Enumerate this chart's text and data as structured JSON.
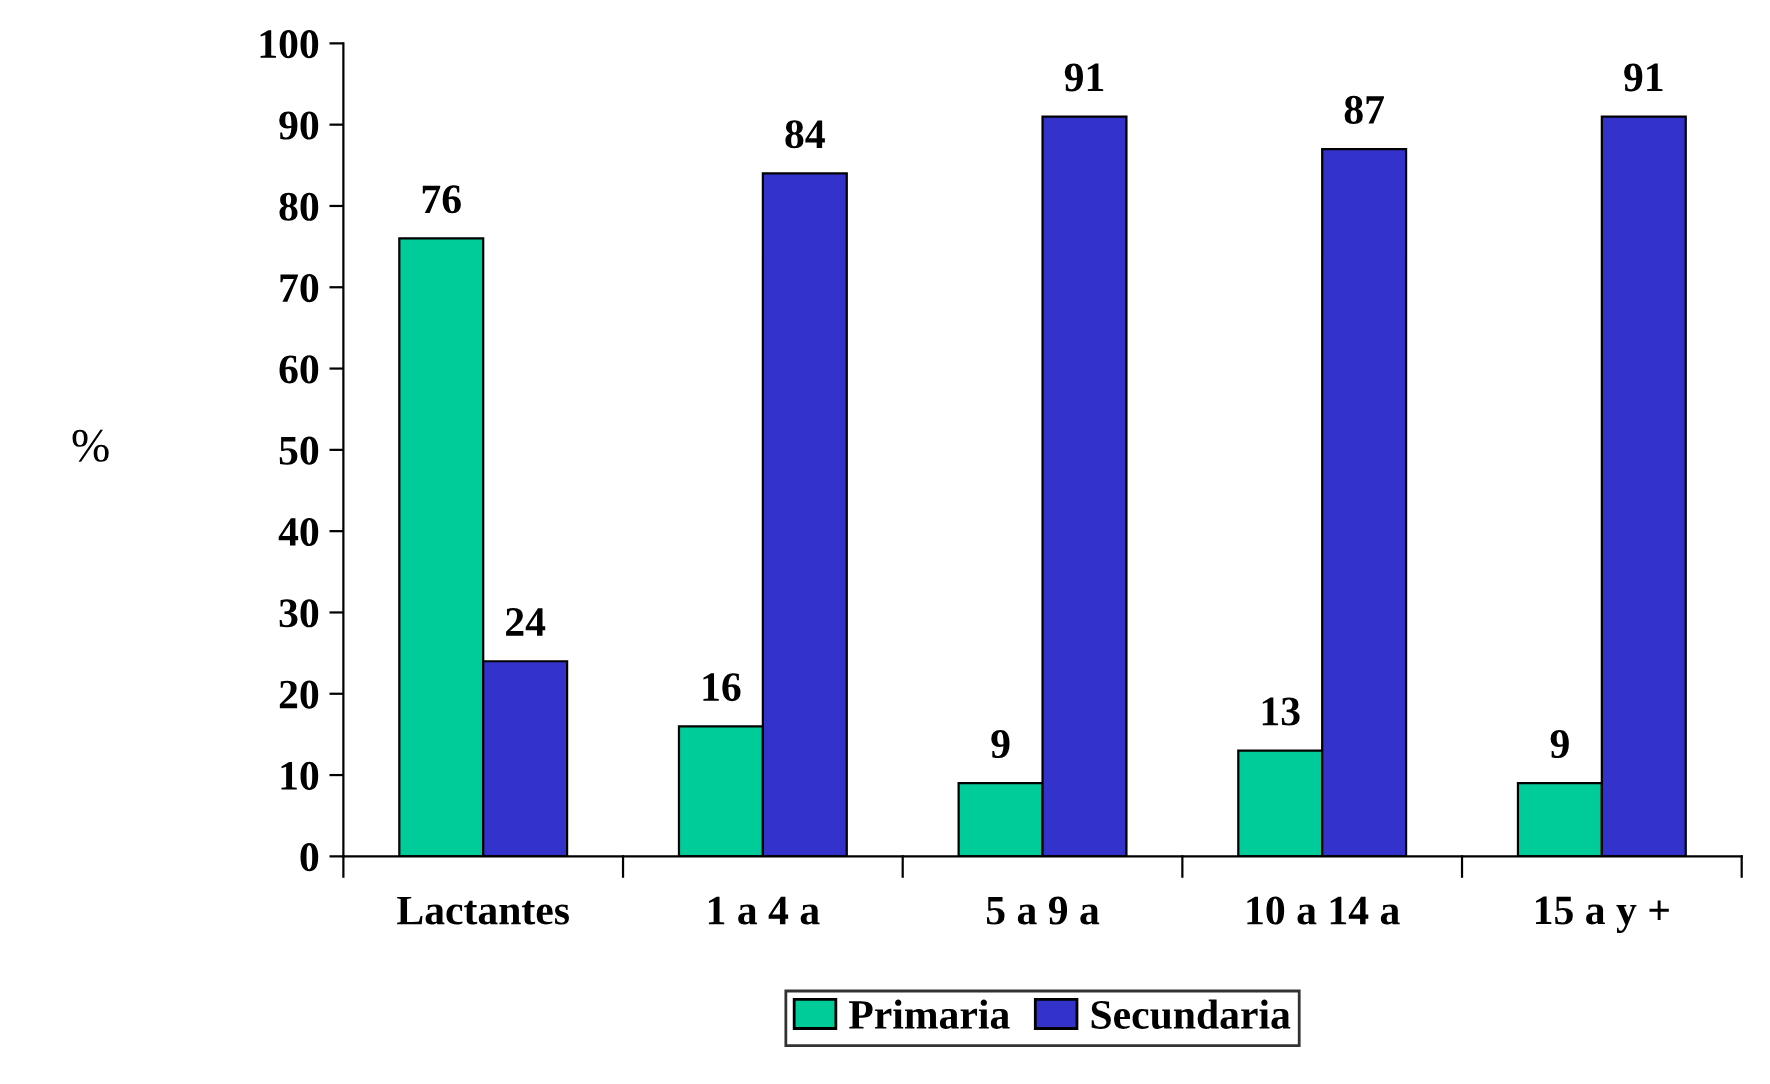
{
  "chart_data": {
    "type": "bar",
    "ylabel": "%",
    "categories": [
      "Lactantes",
      "1 a 4 a",
      "5 a 9 a",
      "10 a 14 a",
      "15 a y +"
    ],
    "series": [
      {
        "name": "Primaria",
        "color": "#00cc99",
        "values": [
          76,
          16,
          9,
          13,
          9
        ]
      },
      {
        "name": "Secundaria",
        "color": "#3333cc",
        "values": [
          24,
          84,
          91,
          87,
          91
        ]
      }
    ],
    "ylim": [
      0,
      100
    ],
    "yticks": [
      0,
      10,
      20,
      30,
      40,
      50,
      60,
      70,
      80,
      90,
      100
    ],
    "grid": false,
    "legend": "bottom",
    "data_labels": true
  }
}
